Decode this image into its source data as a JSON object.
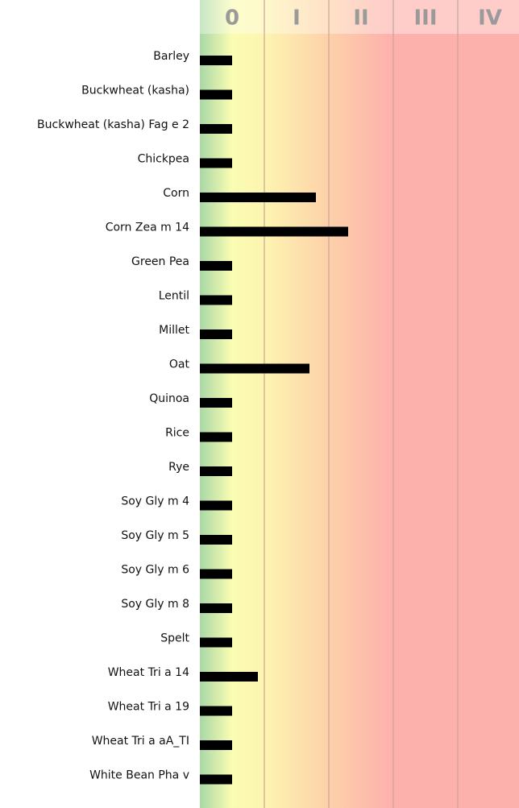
{
  "chart_data": {
    "type": "bar",
    "orientation": "horizontal",
    "categories": [
      "Barley",
      "Buckwheat (kasha)",
      "Buckwheat (kasha) Fag e 2",
      "Chickpea",
      "Corn",
      "Corn Zea m 14",
      "Green Pea",
      "Lentil",
      "Millet",
      "Oat",
      "Quinoa",
      "Rice",
      "Rye",
      "Soy Gly m 4",
      "Soy Gly m 5",
      "Soy Gly m 6",
      "Soy Gly m 8",
      "Spelt",
      "Wheat Tri a 14",
      "Wheat Tri a 19",
      "Wheat Tri a aA_TI",
      "White Bean Pha v"
    ],
    "values": [
      0.5,
      0.5,
      0.5,
      0.5,
      1.8,
      2.3,
      0.5,
      0.5,
      0.5,
      1.7,
      0.5,
      0.5,
      0.5,
      0.5,
      0.5,
      0.5,
      0.5,
      0.5,
      0.9,
      0.5,
      0.5,
      0.5
    ],
    "color": "#000000",
    "xlim": [
      0,
      4.95
    ],
    "xticks": [
      {
        "value": 0.5,
        "label": "0"
      },
      {
        "value": 1.5,
        "label": "I"
      },
      {
        "value": 2.5,
        "label": "II"
      },
      {
        "value": 3.5,
        "label": "III"
      },
      {
        "value": 4.5,
        "label": "IV"
      }
    ],
    "xgrid": [
      1,
      2,
      3,
      4
    ],
    "grid": true
  }
}
